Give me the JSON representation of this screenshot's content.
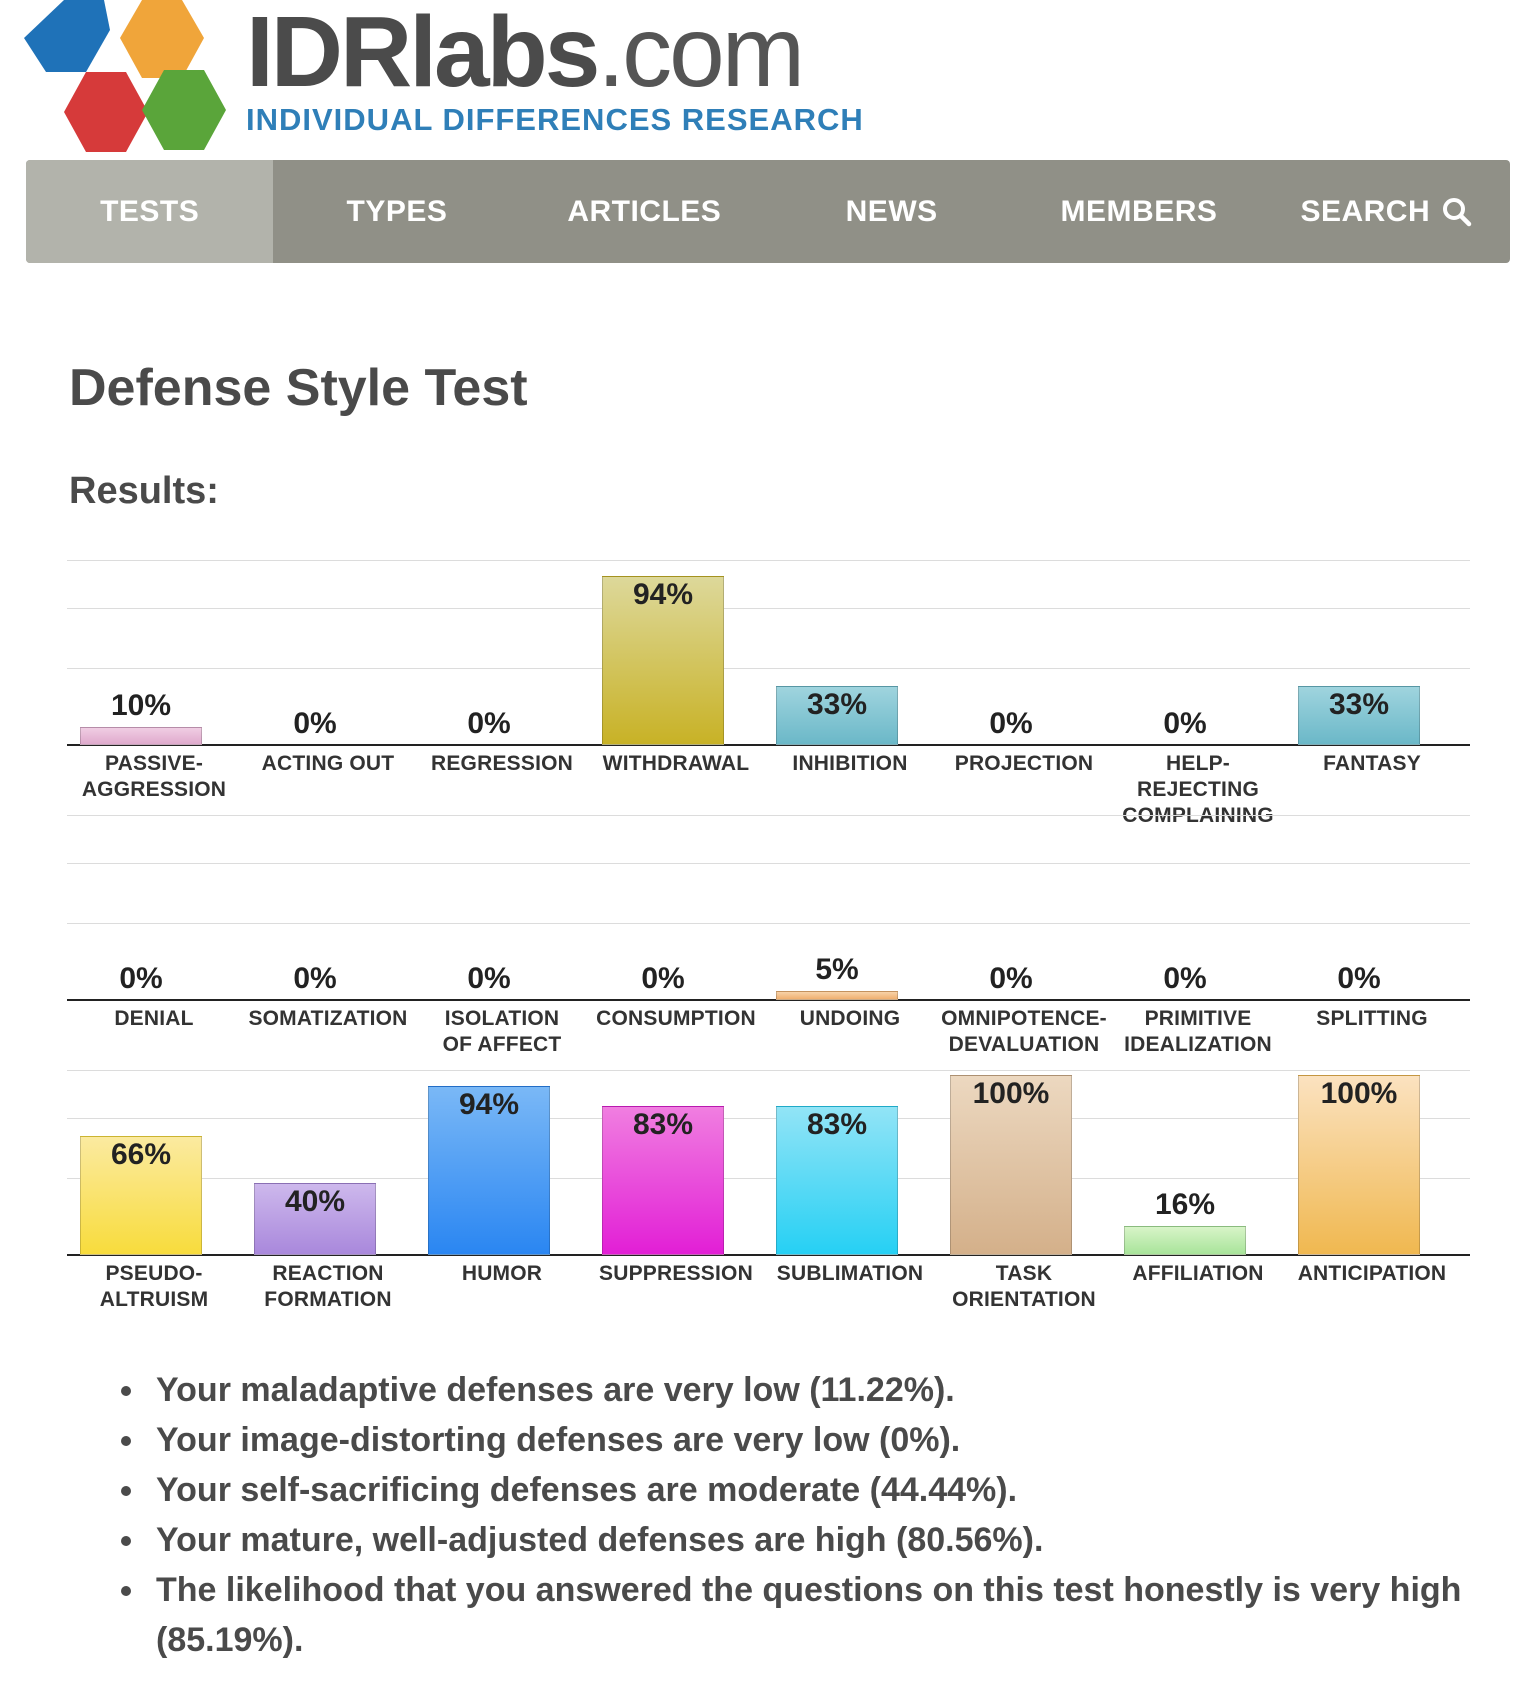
{
  "logo": {
    "brand_bold": "IDRlabs",
    "brand_domain": ".com",
    "tagline": "INDIVIDUAL DIFFERENCES RESEARCH"
  },
  "nav": {
    "items": [
      {
        "label": "TESTS",
        "active": true
      },
      {
        "label": "TYPES",
        "active": false
      },
      {
        "label": "ARTICLES",
        "active": false
      },
      {
        "label": "NEWS",
        "active": false
      },
      {
        "label": "MEMBERS",
        "active": false
      },
      {
        "label": "SEARCH",
        "active": false,
        "icon": "search-icon"
      }
    ]
  },
  "page": {
    "title": "Defense Style Test",
    "results_label": "Results:"
  },
  "chart_data": {
    "type": "bar",
    "ylim": [
      0,
      100
    ],
    "grid": true,
    "rows": [
      {
        "categories": [
          "PASSIVE-\nAGGRESSION",
          "ACTING OUT",
          "REGRESSION",
          "WITHDRAWAL",
          "INHIBITION",
          "PROJECTION",
          "HELP-REJECTING\nCOMPLAINING",
          "FANTASY"
        ],
        "values": [
          10,
          0,
          0,
          94,
          33,
          0,
          0,
          33
        ],
        "labels": [
          "10%",
          "0%",
          "0%",
          "94%",
          "33%",
          "0%",
          "0%",
          "33%"
        ],
        "colors": [
          [
            "#f0cde3",
            "#dfaacd"
          ],
          [
            "#cccccc",
            "#aaaaaa"
          ],
          [
            "#cccccc",
            "#aaaaaa"
          ],
          [
            "#ddd89a",
            "#c8b226"
          ],
          [
            "#9fd4de",
            "#6bb8c8"
          ],
          [
            "#cccccc",
            "#aaaaaa"
          ],
          [
            "#cccccc",
            "#aaaaaa"
          ],
          [
            "#9fd4de",
            "#6bb8c8"
          ]
        ]
      },
      {
        "categories": [
          "DENIAL",
          "SOMATIZATION",
          "ISOLATION\nOF AFFECT",
          "CONSUMPTION",
          "UNDOING",
          "OMNIPOTENCE-\nDEVALUATION",
          "PRIMITIVE\nIDEALIZATION",
          "SPLITTING"
        ],
        "values": [
          0,
          0,
          0,
          0,
          5,
          0,
          0,
          0
        ],
        "labels": [
          "0%",
          "0%",
          "0%",
          "0%",
          "5%",
          "0%",
          "0%",
          "0%"
        ],
        "colors": [
          [
            "#cccccc",
            "#aaaaaa"
          ],
          [
            "#cccccc",
            "#aaaaaa"
          ],
          [
            "#cccccc",
            "#aaaaaa"
          ],
          [
            "#cccccc",
            "#aaaaaa"
          ],
          [
            "#f8d2a8",
            "#f0b070"
          ],
          [
            "#cccccc",
            "#aaaaaa"
          ],
          [
            "#cccccc",
            "#aaaaaa"
          ],
          [
            "#cccccc",
            "#aaaaaa"
          ]
        ]
      },
      {
        "categories": [
          "PSEUDO-\nALTRUISM",
          "REACTION\nFORMATION",
          "HUMOR",
          "SUPPRESSION",
          "SUBLIMATION",
          "TASK\nORIENTATION",
          "AFFILIATION",
          "ANTICIPATION"
        ],
        "values": [
          66,
          40,
          94,
          83,
          83,
          100,
          16,
          100
        ],
        "labels": [
          "66%",
          "40%",
          "94%",
          "83%",
          "83%",
          "100%",
          "16%",
          "100%"
        ],
        "colors": [
          [
            "#fbeaa0",
            "#f8dc3c"
          ],
          [
            "#cdb8ec",
            "#a988dc"
          ],
          [
            "#7ab8f6",
            "#2a86f2"
          ],
          [
            "#f07ee0",
            "#e21fd6"
          ],
          [
            "#92e4f6",
            "#26d0f4"
          ],
          [
            "#ecd8c0",
            "#d4b08a"
          ],
          [
            "#d8f4c8",
            "#a8e49a"
          ],
          [
            "#fbe2c0",
            "#f0b850"
          ]
        ]
      }
    ]
  },
  "summary": [
    "Your maladaptive defenses are very low (11.22%).",
    "Your image-distorting defenses are very low (0%).",
    "Your self-sacrificing defenses are moderate (44.44%).",
    "Your mature, well-adjusted defenses are high (80.56%).",
    "The likelihood that you answered the questions on this test honestly is very high (85.19%)."
  ]
}
